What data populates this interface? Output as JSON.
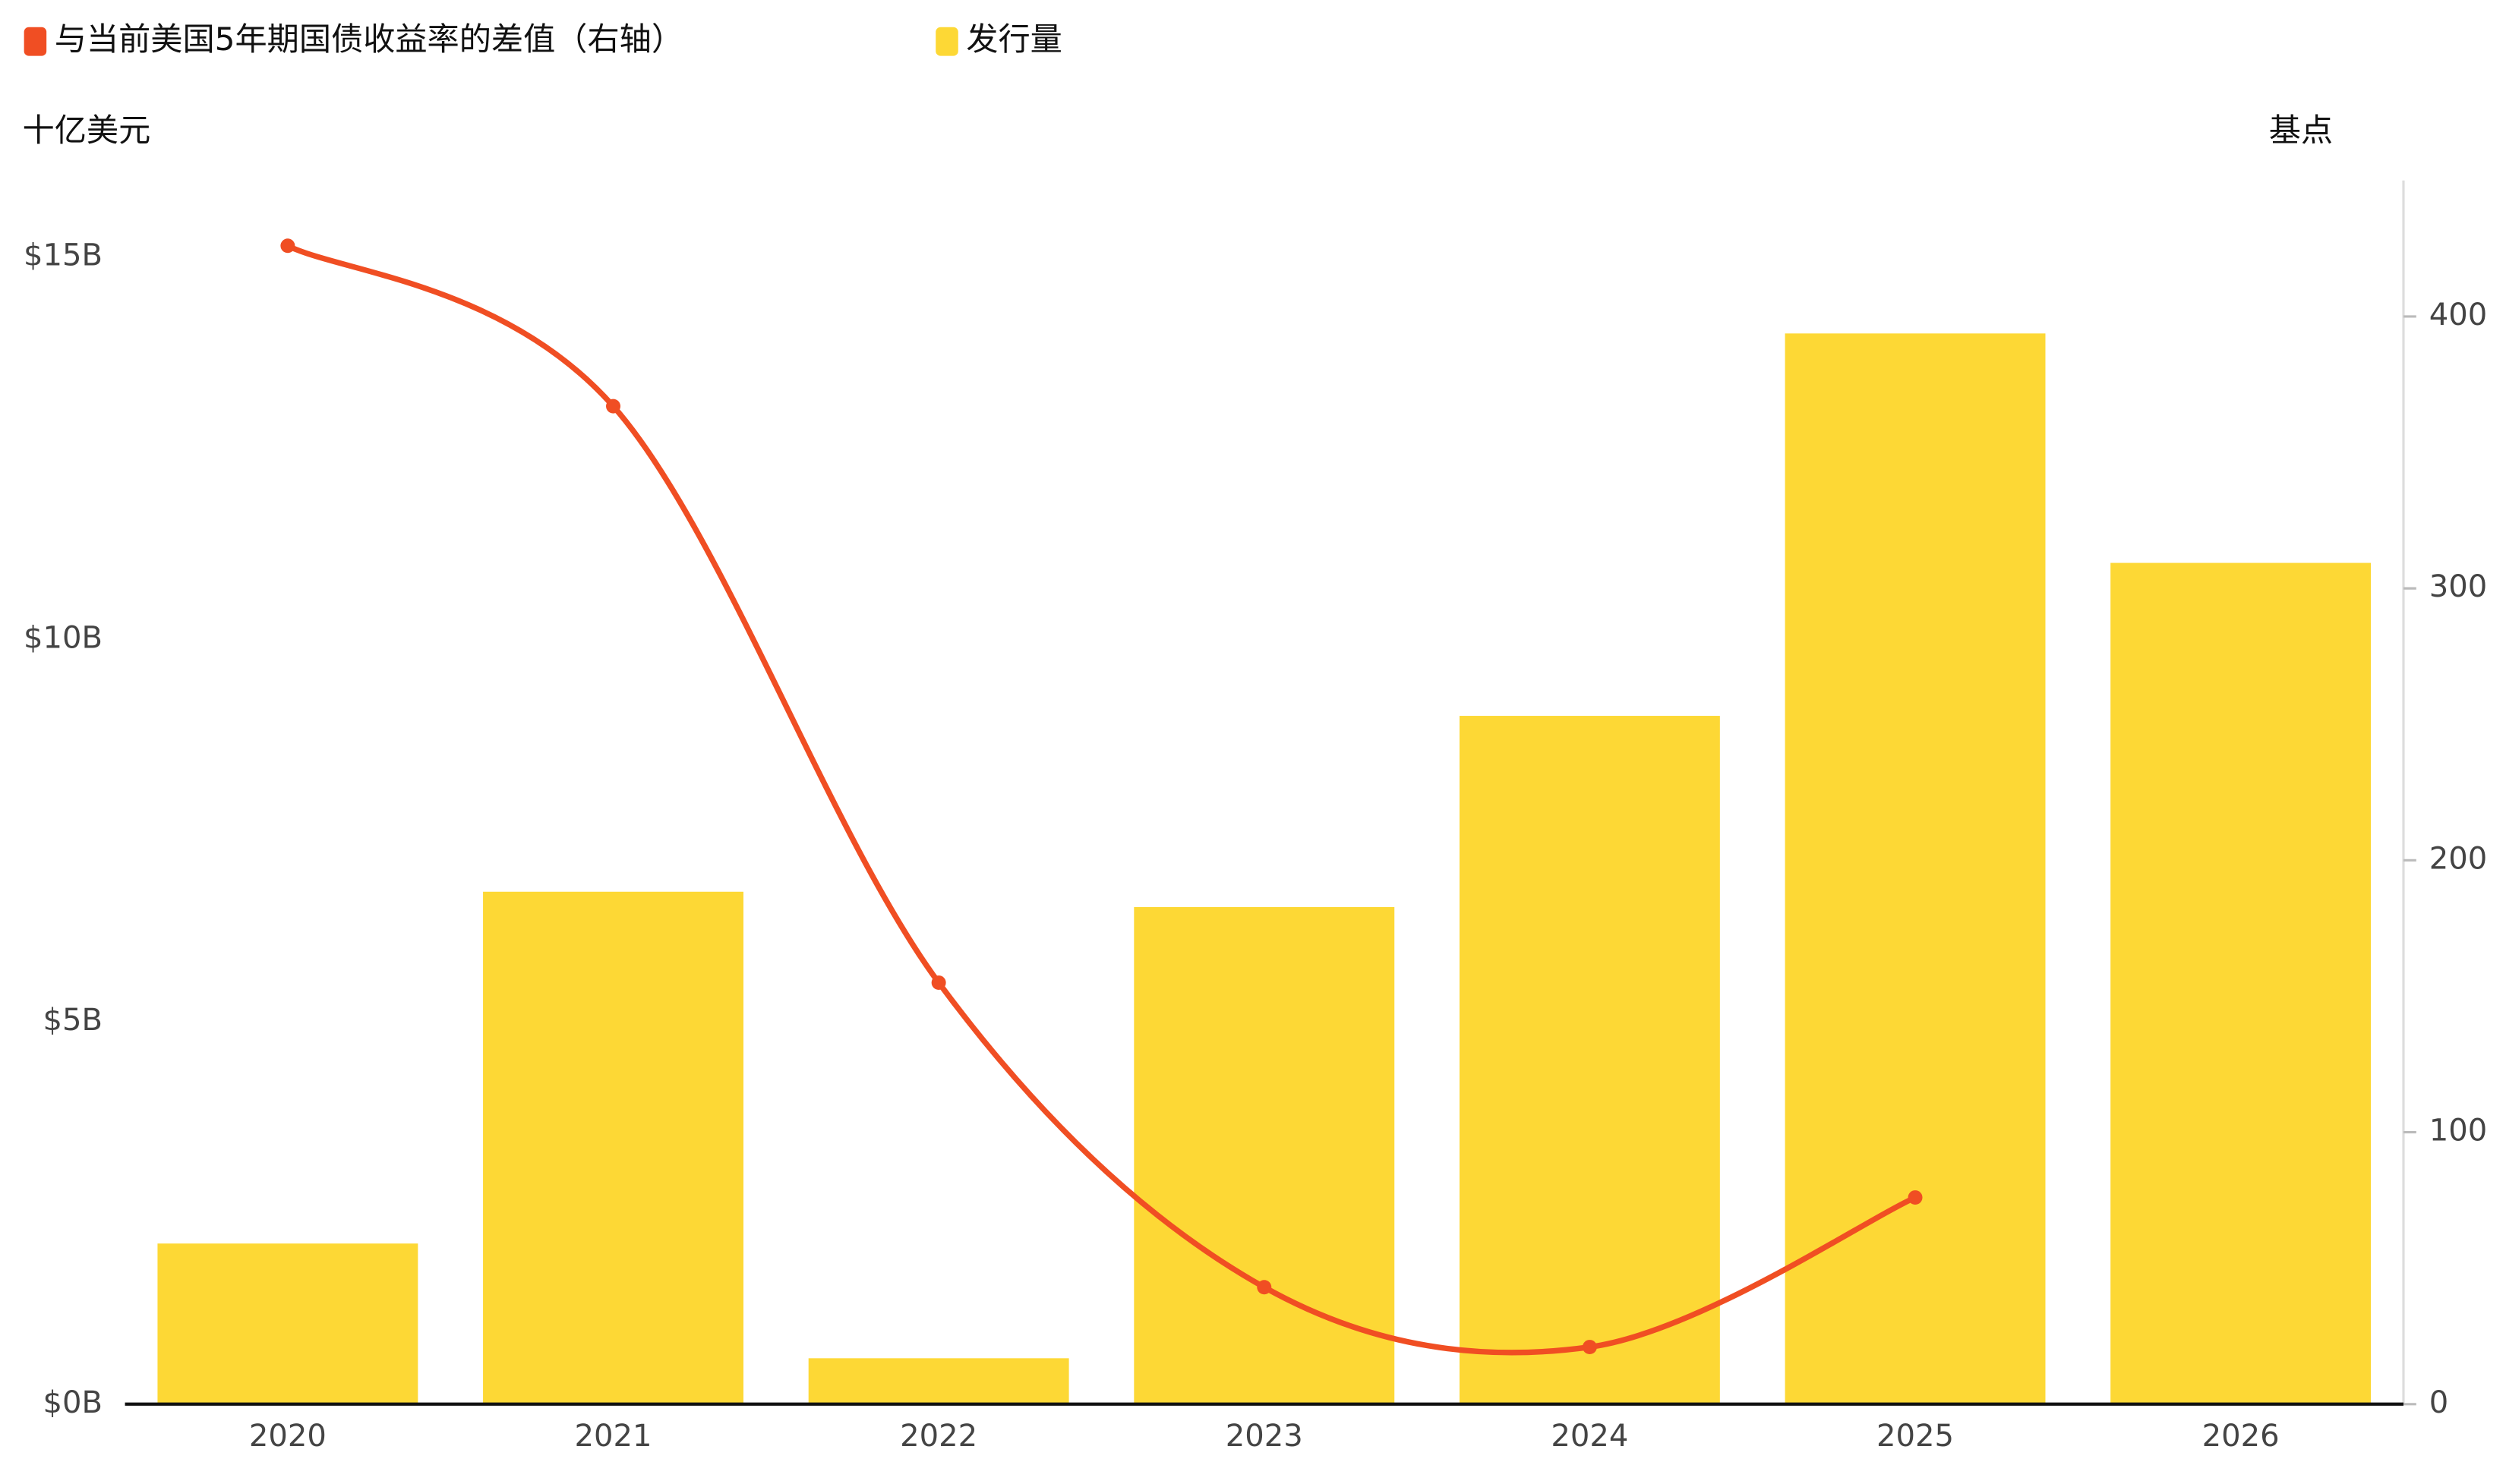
{
  "chart_data": {
    "type": "bar",
    "categories": [
      "2020",
      "2021",
      "2022",
      "2023",
      "2024",
      "2025",
      "2026"
    ],
    "series": [
      {
        "name": "与当前美国5年期国债收益率的差值（右轴）",
        "type": "line",
        "color": "#f04e23",
        "axis": "y2",
        "values": [
          426,
          367,
          155,
          43,
          21,
          76,
          null
        ]
      },
      {
        "name": "发行量",
        "type": "bar",
        "color": "#fdd835",
        "values": [
          2.1,
          6.7,
          0.6,
          6.5,
          9.0,
          14.0,
          11.0
        ]
      }
    ],
    "ylabel": "十亿美元",
    "y2label": "基点",
    "ylim": [
      0,
      16
    ],
    "yticks": [
      {
        "value": 0,
        "label": "$0B"
      },
      {
        "value": 5,
        "label": "$5B"
      },
      {
        "value": 10,
        "label": "$10B"
      },
      {
        "value": 15,
        "label": "$15B"
      }
    ],
    "y2lim": [
      0,
      450
    ],
    "y2ticks": [
      0,
      100,
      200,
      300,
      400
    ],
    "grid": false,
    "legend": "top-left"
  }
}
